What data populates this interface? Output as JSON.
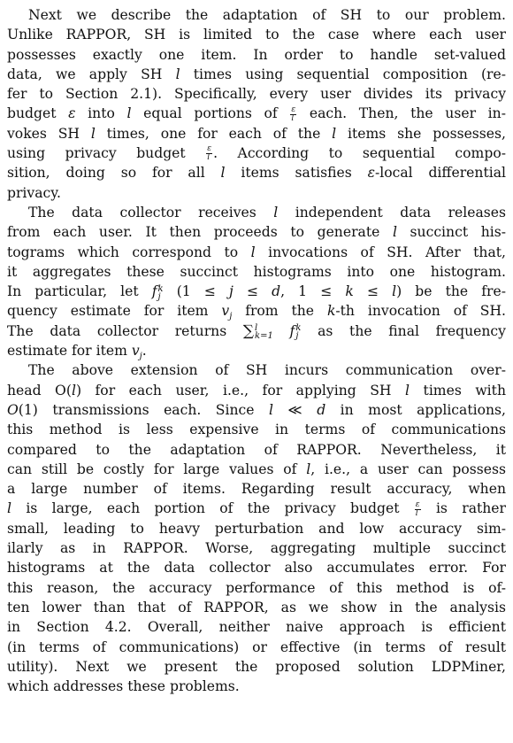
{
  "paragraphs": [
    {
      "lines": [
        "Next we describe the adaptation of SH to our problem.",
        "Unlike RAPPOR, SH is limited to the case where each user",
        "possesses exactly one item.  In order to handle set-valued",
        "data, we apply SH l times using sequential composition (re-",
        "fer to Section 2.1). Specifically, every user divides its privacy",
        "budget ε into l equal portions of ε/l each. Then, the user in-",
        "vokes SH l times, one for each of the l items she possesses,",
        "using privacy budget ε/l.  According to sequential compo-",
        "sition, doing so for all l items satisfies ε-local differential",
        "privacy."
      ]
    },
    {
      "lines": [
        "The data collector receives l independent data releases",
        "from each user. It then proceeds to generate l succinct his-",
        "tograms which correspond to l invocations of SH. After that,",
        "it aggregates these succinct histograms into one histogram.",
        "In particular, let f_j^k (1 ≤ j ≤ d, 1 ≤ k ≤ l) be the fre-",
        "quency estimate for item v_j from the k-th invocation of SH.",
        "The data collector returns Σ_{k=1}^{l} f_j^k as the final frequency",
        "estimate for item v_j."
      ]
    },
    {
      "lines": [
        "The above extension of SH incurs communication over-",
        "head O(l) for each user, i.e., for applying SH l times with",
        "O(1) transmissions each. Since l ≪ d in most applications,",
        "this method is less expensive in terms of communications",
        "compared to the adaptation of RAPPOR. Nevertheless, it",
        "can still be costly for large values of l, i.e., a user can possess",
        "a large number of items.  Regarding result accuracy, when",
        "l is large, each portion of the privacy budget ε/l is rather",
        "small, leading to heavy perturbation and low accuracy sim-",
        "ilarly as in RAPPOR. Worse, aggregating multiple succinct",
        "histograms at the data collector also accumulates error. For",
        "this reason, the accuracy performance of this method is of-",
        "ten lower than that of RAPPOR, as we show in the analysis",
        "in Section 4.2.  Overall, neither naive approach is efficient",
        "(in terms of communications) or effective (in terms of result",
        "utility). Next we present the proposed solution LDPMiner,",
        "which addresses these problems."
      ]
    }
  ]
}
